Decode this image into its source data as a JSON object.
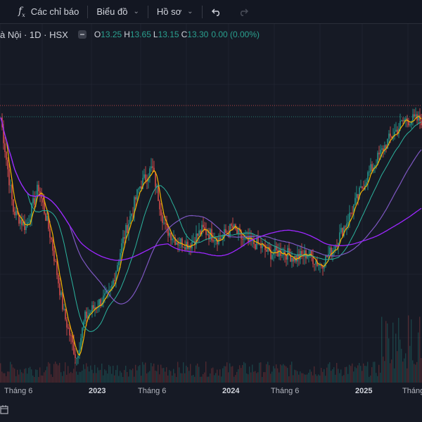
{
  "toolbar": {
    "indicators_icon": "fx-icon",
    "indicators_label": "Các chỉ báo",
    "chart_label": "Biểu đồ",
    "profile_label": "Hồ sơ",
    "undo_icon": "undo-icon",
    "redo_icon": "redo-icon"
  },
  "legend": {
    "symbol": "à Nội · 1D · HSX",
    "open_key": "O",
    "open": "13.25",
    "high_key": "H",
    "high": "13.65",
    "low_key": "L",
    "low": "13.15",
    "close_key": "C",
    "close": "13.30",
    "change": "0.00 (0.00%)"
  },
  "x_axis": {
    "labels": [
      {
        "text": "Tháng 6",
        "year": false
      },
      {
        "text": "2023",
        "year": true
      },
      {
        "text": "Tháng 6",
        "year": false
      },
      {
        "text": "2024",
        "year": true
      },
      {
        "text": "Tháng 6",
        "year": false
      },
      {
        "text": "2025",
        "year": true
      },
      {
        "text": "Tháng",
        "year": false
      }
    ]
  },
  "colors": {
    "background": "#161a25",
    "up": "#26a69a",
    "down": "#ef5350",
    "ma_fast": "#f5b400",
    "ma_mid": "#2bb39e",
    "ma_slow": "#7e57c2",
    "ma_long": "#9c27ff",
    "price_line": "#2aa08f",
    "high_line": "#ef5350"
  },
  "chart_data": {
    "type": "candlestick",
    "series_shape": [
      [
        0,
        13.4
      ],
      [
        3,
        9.5
      ],
      [
        6,
        8.8
      ],
      [
        9,
        10.5
      ],
      [
        12,
        8.3
      ],
      [
        15,
        5.2
      ],
      [
        18,
        3.3
      ],
      [
        20,
        5.0
      ],
      [
        23,
        5.6
      ],
      [
        26,
        6.0
      ],
      [
        29,
        8.2
      ],
      [
        33,
        10.5
      ],
      [
        36,
        11.3
      ],
      [
        39,
        8.8
      ],
      [
        42,
        8.2
      ],
      [
        45,
        8.1
      ],
      [
        48,
        8.7
      ],
      [
        52,
        8.3
      ],
      [
        55,
        8.8
      ],
      [
        58,
        8.2
      ],
      [
        61,
        8.1
      ],
      [
        64,
        7.7
      ],
      [
        67,
        7.8
      ],
      [
        70,
        7.5
      ],
      [
        73,
        7.7
      ],
      [
        76,
        7.2
      ],
      [
        79,
        7.9
      ],
      [
        83,
        9.3
      ],
      [
        87,
        10.9
      ],
      [
        92,
        12.4
      ],
      [
        96,
        13.3
      ],
      [
        100,
        13.3
      ]
    ],
    "ma_periods_visible": 4
  }
}
